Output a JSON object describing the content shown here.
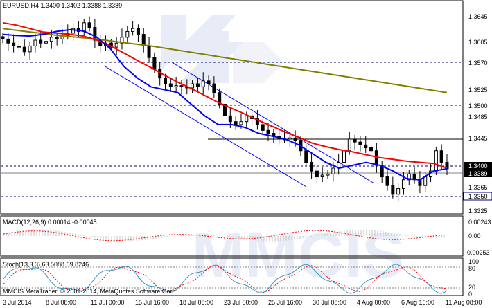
{
  "main": {
    "title": "EURUSD,H4  1.3400 1.3402 1.3388 1.3389",
    "y_labels": [
      "1.3645",
      "1.3605",
      "1.3570",
      "1.3525",
      "1.3500",
      "1.3485",
      "1.3445",
      "1.3400",
      "1.3389",
      "1.3365",
      "1.3350",
      "1.3325"
    ],
    "current_price": "1.3389",
    "levels_label": [
      "1.3570",
      "1.3500",
      "1.3400",
      "1.3350"
    ]
  },
  "macd": {
    "title": "MACD(12,26,9) 0.00014 -0.00045",
    "y_labels": [
      "0.00243",
      "0.00",
      "-0.00253"
    ]
  },
  "stoch": {
    "title": "Stoch(13,3,3) 63.5088 69.8246",
    "y_labels": [
      "100",
      "80",
      "20",
      "0"
    ],
    "footer": "MMCIS MetaTrader, © 2001-2014, MetaQuotes Software Corp."
  },
  "x_axis": {
    "labels": [
      "3 Jul 2014",
      "8 Jul 08:00",
      "11 Jul 00:00",
      "15 Jul 16:00",
      "18 Jul 08:00",
      "23 Jul 00:00",
      "25 Jul 16:00",
      "30 Jul 08:00",
      "4 Aug 00:00",
      "6 Aug 16:00",
      "11 Aug 08:00"
    ]
  },
  "watermark": "MMCIS",
  "colors": {
    "ma_fast": "#0000ff",
    "ma_mid": "#ff0000",
    "ma_slow": "#808000",
    "level_line": "#000080",
    "signal": "#ff0000",
    "watermark": "#d6dcef"
  },
  "chart_data": {
    "type": "line",
    "title": "EURUSD,H4  1.3400 1.3402 1.3388 1.3389",
    "x_ticks": [
      "3 Jul 2014",
      "8 Jul 08:00",
      "11 Jul 00:00",
      "15 Jul 16:00",
      "18 Jul 08:00",
      "23 Jul 00:00",
      "25 Jul 16:00",
      "30 Jul 08:00",
      "4 Aug 00:00",
      "6 Aug 16:00",
      "11 Aug 08:00"
    ],
    "ylim": [
      1.3315,
      1.366
    ],
    "horizontal_levels": [
      1.357,
      1.35,
      1.3445,
      1.34,
      1.335
    ],
    "close": [
      1.3612,
      1.3605,
      1.36,
      1.3598,
      1.359,
      1.36,
      1.361,
      1.3605,
      1.3608,
      1.3615,
      1.3612,
      1.3618,
      1.3622,
      1.363,
      1.3625,
      1.364,
      1.3632,
      1.361,
      1.36,
      1.3605,
      1.3598,
      1.3605,
      1.3615,
      1.3625,
      1.363,
      1.362,
      1.36,
      1.358,
      1.356,
      1.3545,
      1.3535,
      1.353,
      1.3532,
      1.353,
      1.3528,
      1.3535,
      1.353,
      1.354,
      1.3535,
      1.352,
      1.35,
      1.348,
      1.347,
      1.3465,
      1.347,
      1.348,
      1.3475,
      1.3465,
      1.3455,
      1.345,
      1.3445,
      1.344,
      1.344,
      1.3442,
      1.3438,
      1.342,
      1.34,
      1.3385,
      1.3375,
      1.3378,
      1.338,
      1.339,
      1.34,
      1.342,
      1.344,
      1.3435,
      1.343,
      1.3425,
      1.342,
      1.3395,
      1.3375,
      1.336,
      1.3345,
      1.3355,
      1.337,
      1.338,
      1.337,
      1.336,
      1.3375,
      1.3385,
      1.342,
      1.34,
      1.3389
    ],
    "series": [
      {
        "name": "",
        "values": [
          1.362,
          1.3618,
          1.3617,
          1.362,
          1.3625,
          1.3628,
          1.3626,
          1.3615,
          1.3595,
          1.3565,
          1.3545,
          1.353,
          1.3525,
          1.352,
          1.35,
          1.348,
          1.3465,
          1.3465,
          1.346,
          1.345,
          1.3445,
          1.344,
          1.343,
          1.3415,
          1.34,
          1.339,
          1.3395,
          1.34,
          1.3395,
          1.3385,
          1.3372,
          1.337,
          1.3385,
          1.3389
        ]
      },
      {
        "name": "",
        "values": [
          1.364,
          1.3636,
          1.363,
          1.3624,
          1.3622,
          1.362,
          1.3617,
          1.361,
          1.36,
          1.3588,
          1.3575,
          1.3563,
          1.355,
          1.3538,
          1.3527,
          1.3515,
          1.3503,
          1.3493,
          1.3483,
          1.3472,
          1.3462,
          1.3452,
          1.3443,
          1.3433,
          1.3427,
          1.3422,
          1.3418,
          1.3413,
          1.3408,
          1.3405,
          1.3402,
          1.34,
          1.3398,
          1.339
        ]
      },
      {
        "name": "",
        "values": [
          1.363,
          1.3626,
          1.3622,
          1.3618,
          1.3615,
          1.3612,
          1.3608,
          1.3604,
          1.36,
          1.3595,
          1.359,
          1.3585,
          1.358,
          1.3575,
          1.357,
          1.3565,
          1.356,
          1.3555,
          1.355,
          1.3545,
          1.354,
          1.3535,
          1.353,
          1.3525,
          1.352
        ]
      }
    ]
  }
}
